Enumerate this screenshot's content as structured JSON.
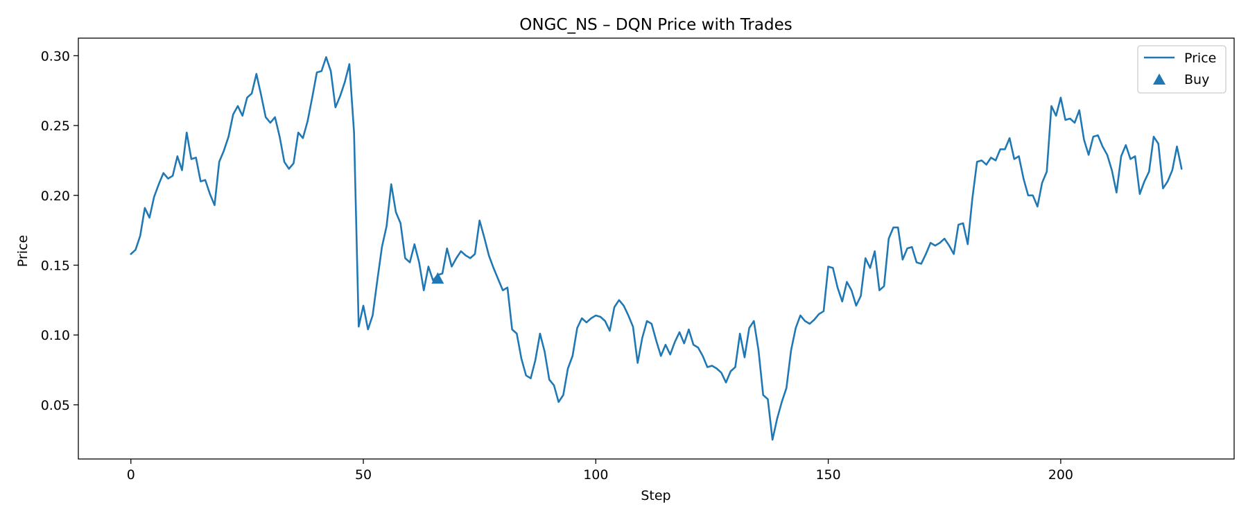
{
  "chart_data": {
    "type": "line",
    "title": "ONGC_NS – DQN Price with Trades",
    "xlabel": "Step",
    "ylabel": "Price",
    "xlim": [
      -11.3,
      237.3
    ],
    "ylim": [
      0.0112,
      0.3126
    ],
    "xticks": [
      0,
      50,
      100,
      150,
      200
    ],
    "yticks": [
      0.05,
      0.1,
      0.15,
      0.2,
      0.25,
      0.3
    ],
    "ytick_labels": [
      "0.05",
      "0.10",
      "0.15",
      "0.20",
      "0.25",
      "0.30"
    ],
    "grid": false,
    "legend_position": "upper right",
    "series": [
      {
        "name": "Price",
        "color": "#1f77b4",
        "x_start": 0,
        "values": [
          0.158,
          0.161,
          0.171,
          0.191,
          0.184,
          0.199,
          0.208,
          0.216,
          0.212,
          0.214,
          0.228,
          0.218,
          0.245,
          0.226,
          0.227,
          0.21,
          0.211,
          0.201,
          0.193,
          0.224,
          0.232,
          0.242,
          0.258,
          0.264,
          0.257,
          0.27,
          0.273,
          0.287,
          0.272,
          0.256,
          0.252,
          0.256,
          0.242,
          0.224,
          0.219,
          0.223,
          0.245,
          0.241,
          0.253,
          0.27,
          0.288,
          0.289,
          0.299,
          0.289,
          0.263,
          0.271,
          0.281,
          0.294,
          0.245,
          0.106,
          0.121,
          0.104,
          0.114,
          0.139,
          0.163,
          0.178,
          0.208,
          0.188,
          0.18,
          0.155,
          0.152,
          0.165,
          0.152,
          0.132,
          0.149,
          0.139,
          0.143,
          0.144,
          0.162,
          0.149,
          0.155,
          0.16,
          0.157,
          0.155,
          0.158,
          0.182,
          0.17,
          0.157,
          0.148,
          0.14,
          0.132,
          0.134,
          0.104,
          0.101,
          0.083,
          0.071,
          0.069,
          0.082,
          0.101,
          0.088,
          0.068,
          0.064,
          0.052,
          0.057,
          0.076,
          0.085,
          0.105,
          0.112,
          0.109,
          0.112,
          0.114,
          0.113,
          0.11,
          0.103,
          0.12,
          0.125,
          0.121,
          0.114,
          0.106,
          0.08,
          0.098,
          0.11,
          0.108,
          0.096,
          0.085,
          0.093,
          0.086,
          0.095,
          0.102,
          0.094,
          0.104,
          0.093,
          0.091,
          0.085,
          0.077,
          0.078,
          0.076,
          0.073,
          0.066,
          0.074,
          0.077,
          0.101,
          0.084,
          0.105,
          0.11,
          0.089,
          0.057,
          0.054,
          0.025,
          0.04,
          0.052,
          0.062,
          0.089,
          0.105,
          0.114,
          0.11,
          0.108,
          0.111,
          0.115,
          0.117,
          0.149,
          0.148,
          0.134,
          0.124,
          0.138,
          0.132,
          0.121,
          0.128,
          0.155,
          0.148,
          0.16,
          0.132,
          0.135,
          0.169,
          0.177,
          0.177,
          0.154,
          0.162,
          0.163,
          0.152,
          0.151,
          0.158,
          0.166,
          0.164,
          0.166,
          0.169,
          0.164,
          0.158,
          0.179,
          0.18,
          0.165,
          0.198,
          0.224,
          0.225,
          0.222,
          0.227,
          0.225,
          0.233,
          0.233,
          0.241,
          0.226,
          0.228,
          0.212,
          0.2,
          0.2,
          0.192,
          0.209,
          0.217,
          0.264,
          0.257,
          0.27,
          0.254,
          0.255,
          0.252,
          0.261,
          0.24,
          0.229,
          0.242,
          0.243,
          0.235,
          0.229,
          0.218,
          0.202,
          0.228,
          0.236,
          0.226,
          0.228,
          0.201,
          0.21,
          0.217,
          0.242,
          0.237,
          0.205,
          0.21,
          0.218,
          0.235,
          0.219
        ]
      },
      {
        "name": "Buy",
        "color": "#1f77b4",
        "marker": "triangle-up",
        "x": [
          66
        ],
        "y": [
          0.14
        ]
      }
    ]
  }
}
